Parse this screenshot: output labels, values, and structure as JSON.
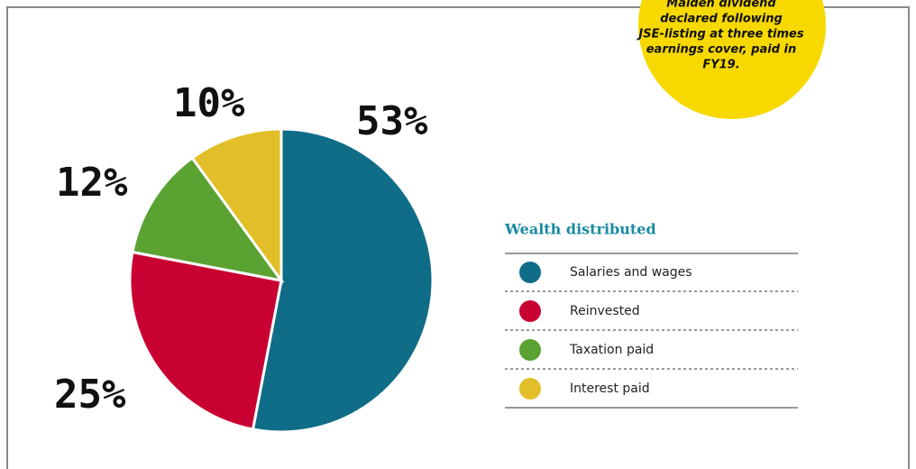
{
  "chart_data": {
    "type": "pie",
    "legend_title": "Wealth distributed",
    "categories": [
      "Salaries and wages",
      "Reinvested",
      "Taxation paid",
      "Interest paid"
    ],
    "values": [
      53,
      25,
      12,
      10
    ],
    "value_labels": [
      "53%",
      "25%",
      "12%",
      "10%"
    ],
    "colors": [
      "#0f6d87",
      "#c90032",
      "#5aa232",
      "#e2bf28"
    ],
    "annotation": [
      "Maiden dividend",
      "declared following",
      "JSE-listing at three times",
      "earnings cover, paid in",
      "FY19."
    ]
  }
}
